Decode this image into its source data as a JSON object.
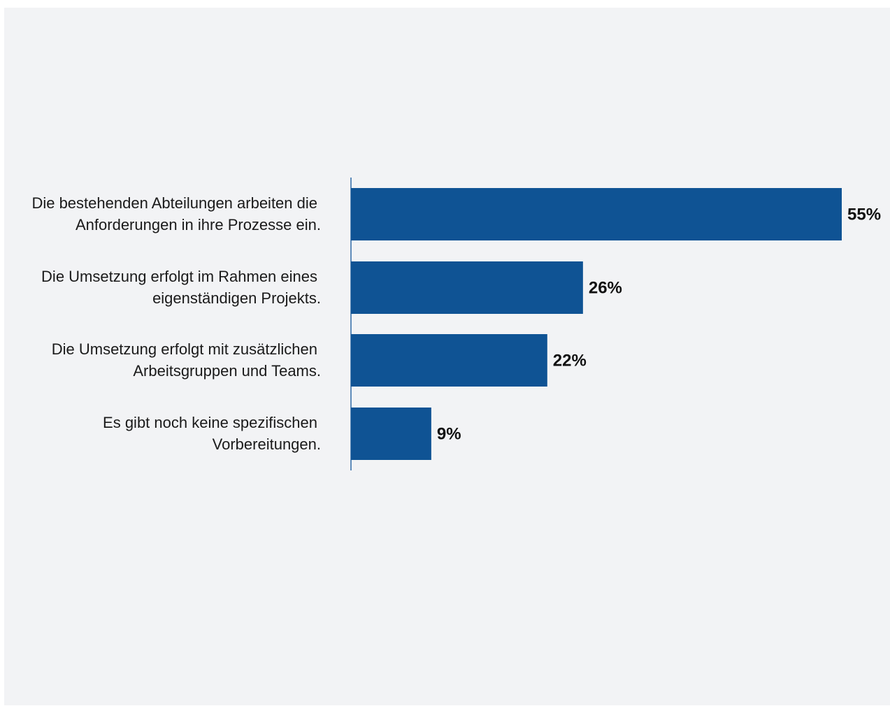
{
  "chart_data": {
    "type": "bar",
    "orientation": "horizontal",
    "categories": [
      [
        "Die bestehenden Abteilungen arbeiten die",
        "Anforderungen in ihre Prozesse ein."
      ],
      [
        "Die Umsetzung erfolgt im Rahmen eines",
        "eigenständigen Projekts."
      ],
      [
        "Die Umsetzung erfolgt mit zusätzlichen",
        "Arbeitsgruppen und Teams."
      ],
      [
        "Es gibt noch keine spezifischen",
        "Vorbereitungen."
      ]
    ],
    "values": [
      55,
      26,
      22,
      9
    ],
    "value_labels": [
      "55%",
      "26%",
      "22%",
      "9%"
    ],
    "xlim": [
      0,
      55
    ],
    "grid": false,
    "legend": "none",
    "colors": {
      "bar": "#0f5394",
      "axis": "#2e6aa6",
      "background": "#f2f3f5"
    }
  }
}
